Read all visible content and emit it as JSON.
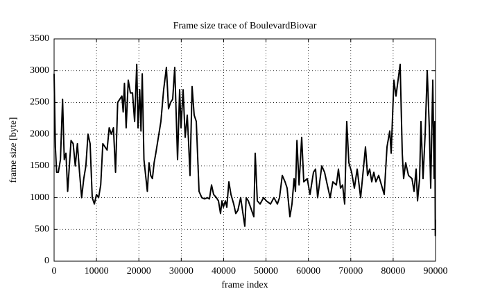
{
  "chart_data": {
    "type": "line",
    "title": "Frame size trace of BoulevardBiovar",
    "x_label": "frame index",
    "y_label": "frame size [byte]",
    "color": "#000000",
    "grid": true,
    "xlim": [
      0,
      90000
    ],
    "ylim": [
      0,
      3500
    ],
    "xticks": [
      0,
      10000,
      20000,
      30000,
      40000,
      50000,
      60000,
      70000,
      80000,
      90000
    ],
    "yticks": [
      0,
      500,
      1000,
      1500,
      2000,
      2500,
      3000,
      3500
    ],
    "x": [
      0,
      300,
      600,
      1000,
      1500,
      2000,
      2400,
      2800,
      3200,
      3600,
      4000,
      4500,
      5000,
      5500,
      6000,
      6500,
      7000,
      7500,
      8000,
      8500,
      9000,
      9500,
      10000,
      10500,
      11000,
      11500,
      12000,
      12500,
      13000,
      13500,
      14000,
      14500,
      15000,
      15500,
      16000,
      16300,
      16600,
      17000,
      17500,
      18000,
      18500,
      19000,
      19500,
      19800,
      20200,
      20500,
      20800,
      21200,
      21600,
      22000,
      22400,
      22800,
      23200,
      23600,
      24000,
      25200,
      25850,
      26500,
      27000,
      27490,
      27980,
      28470,
      29130,
      29620,
      29950,
      30440,
      30930,
      31420,
      31750,
      32070,
      32560,
      33050,
      33550,
      34200,
      34850,
      35510,
      36160,
      36650,
      37150,
      37640,
      38290,
      38780,
      39270,
      39600,
      39930,
      40420,
      40750,
      41240,
      41730,
      42380,
      42870,
      43360,
      44020,
      45000,
      45330,
      45820,
      47130,
      47450,
      47950,
      48600,
      49420,
      50070,
      51060,
      51870,
      52690,
      53180,
      53840,
      54490,
      54980,
      55640,
      56130,
      56620,
      56950,
      57300,
      57800,
      58420,
      58910,
      59730,
      60380,
      61200,
      61690,
      62180,
      63160,
      63820,
      64470,
      65130,
      65780,
      66600,
      67090,
      67580,
      68070,
      68560,
      69050,
      69550,
      70200,
      70850,
      71510,
      72330,
      73470,
      73960,
      74460,
      74950,
      75440,
      75930,
      76580,
      77240,
      77890,
      78550,
      79200,
      79530,
      80180,
      80670,
      81160,
      81650,
      82150,
      82470,
      82960,
      83620,
      84440,
      84930,
      85420,
      85750,
      86240,
      86560,
      87050,
      87550,
      88040,
      88530,
      88860,
      89350,
      89670,
      89840,
      89950,
      90000
    ],
    "values": [
      2950,
      1800,
      1400,
      1400,
      1600,
      2550,
      1600,
      1700,
      1100,
      1500,
      1900,
      1850,
      1500,
      1850,
      1400,
      1000,
      1300,
      1500,
      2000,
      1850,
      1000,
      900,
      1050,
      1000,
      1200,
      1850,
      1800,
      1750,
      2100,
      2000,
      2100,
      1400,
      2500,
      2550,
      2600,
      2350,
      2800,
      2100,
      2850,
      2650,
      2650,
      2200,
      3100,
      2100,
      2700,
      2050,
      2950,
      1600,
      1350,
      1100,
      1550,
      1350,
      1300,
      1550,
      1700,
      2200,
      2700,
      3050,
      2400,
      2500,
      2550,
      3050,
      1600,
      2700,
      2100,
      2700,
      1950,
      2300,
      1850,
      1350,
      2750,
      2300,
      2200,
      1100,
      1000,
      980,
      1000,
      980,
      1200,
      1050,
      1000,
      950,
      750,
      950,
      850,
      950,
      850,
      1250,
      1050,
      900,
      750,
      800,
      1000,
      550,
      1000,
      950,
      700,
      1700,
      950,
      900,
      1000,
      950,
      900,
      1000,
      900,
      1000,
      1350,
      1250,
      1150,
      700,
      900,
      1300,
      1100,
      1900,
      1200,
      1950,
      1250,
      1300,
      1050,
      1400,
      1450,
      1000,
      1500,
      1400,
      1200,
      1000,
      1250,
      1200,
      1450,
      1150,
      1200,
      900,
      2200,
      1550,
      1400,
      1150,
      1450,
      1000,
      1800,
      1350,
      1450,
      1250,
      1400,
      1250,
      1350,
      1200,
      1050,
      1800,
      2050,
      1700,
      2850,
      2600,
      2850,
      3100,
      1700,
      1300,
      1550,
      1350,
      1300,
      1100,
      1450,
      950,
      1300,
      2200,
      1300,
      2000,
      3000,
      2100,
      1150,
      2850,
      1300,
      2200,
      400,
      650
    ]
  }
}
